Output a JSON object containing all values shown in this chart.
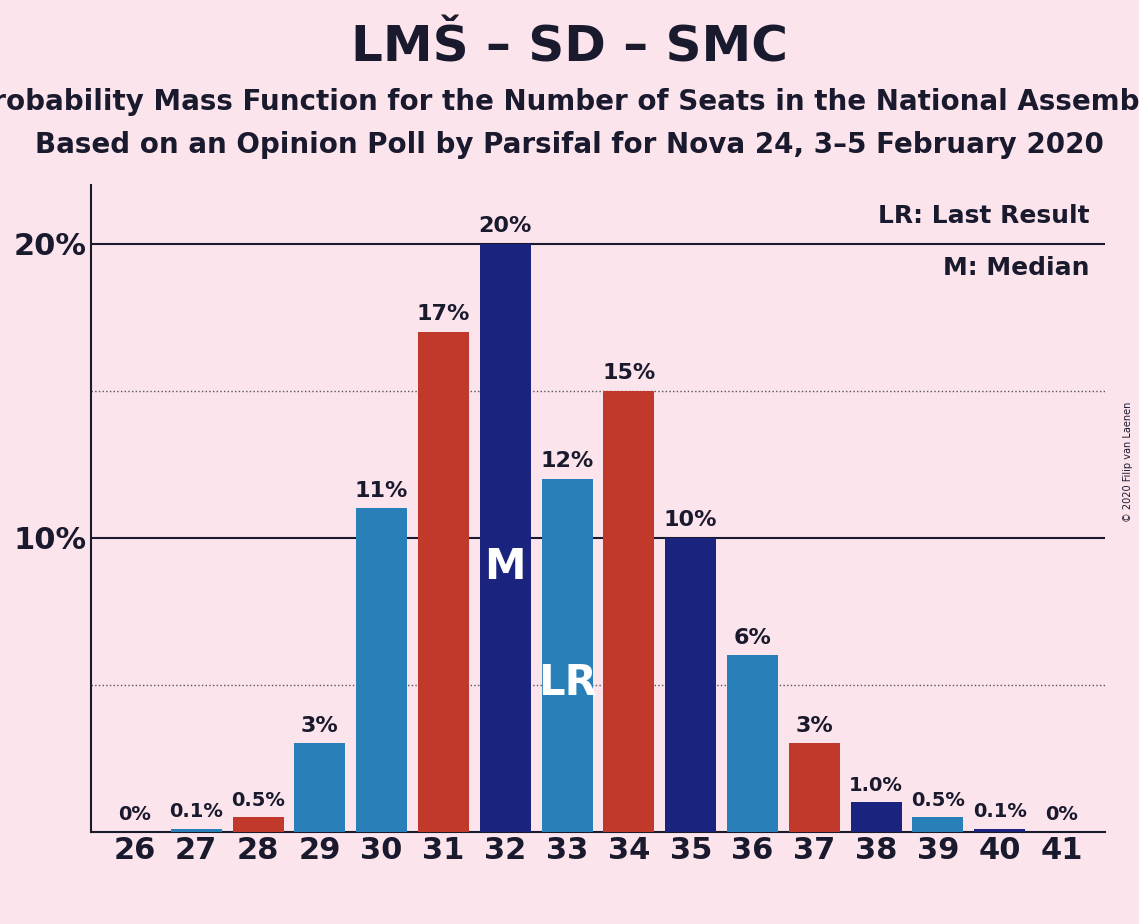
{
  "title": "LMŠ – SD – SMC",
  "subtitle1": "Probability Mass Function for the Number of Seats in the National Assembly",
  "subtitle2": "Based on an Opinion Poll by Parsifal for Nova 24, 3–5 February 2020",
  "watermark": "© 2020 Filip van Laenen",
  "legend_lr": "LR: Last Result",
  "legend_m": "M: Median",
  "seats": [
    26,
    27,
    28,
    29,
    30,
    31,
    32,
    33,
    34,
    35,
    36,
    37,
    38,
    39,
    40,
    41
  ],
  "pmf_values": [
    0.0,
    0.1,
    0.0,
    3.0,
    11.0,
    0.0,
    20.0,
    12.0,
    0.0,
    10.0,
    6.0,
    0.0,
    1.0,
    0.5,
    0.1,
    0.0
  ],
  "pmf_colors": [
    "#1a237e",
    "#2980b9",
    "#1a237e",
    "#2980b9",
    "#2980b9",
    "#1a237e",
    "#1a237e",
    "#2980b9",
    "#1a237e",
    "#1a237e",
    "#2980b9",
    "#1a237e",
    "#1a237e",
    "#2980b9",
    "#1a237e",
    "#1a237e"
  ],
  "lr_values": [
    0.0,
    0.0,
    0.5,
    0.0,
    0.0,
    17.0,
    0.0,
    0.0,
    15.0,
    0.0,
    0.0,
    3.0,
    0.0,
    0.0,
    0.0,
    0.0
  ],
  "lr_color": "#c0392b",
  "background_color": "#fce4ec",
  "bar_width": 0.55,
  "ylim_max": 22,
  "median_seat": 32,
  "lr_label_seat": 33,
  "solid_lines": [
    10,
    20
  ],
  "dotted_lines": [
    5,
    15
  ],
  "title_fontsize": 36,
  "subtitle_fontsize": 20,
  "tick_fontsize": 22,
  "label_fontsize": 16,
  "small_label_fontsize": 14,
  "inside_label_fontsize": 30,
  "legend_fontsize": 18,
  "watermark_fontsize": 7
}
